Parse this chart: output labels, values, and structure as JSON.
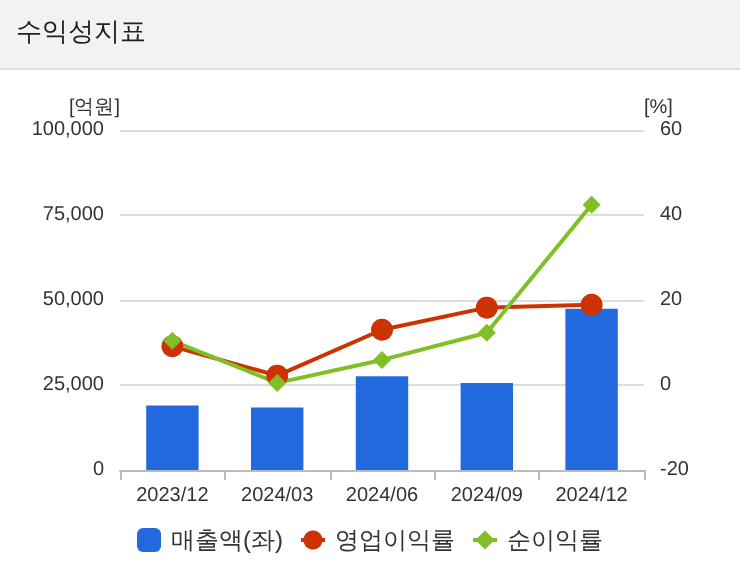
{
  "chart_data": {
    "type": "bar",
    "title": "수익성지표",
    "ylabel": "[억원]",
    "y2label": "[%]",
    "categories": [
      "2023/12",
      "2024/03",
      "2024/06",
      "2024/09",
      "2024/12"
    ],
    "series": [
      {
        "name": "매출액(좌)",
        "color": "#2369de",
        "values": [
          19000,
          18400,
          27600,
          25600,
          47400
        ]
      },
      {
        "name": "영업이익률",
        "type": "line",
        "axis": "y2",
        "color": "#cc3300",
        "marker": "circle",
        "values": [
          9.1,
          2.2,
          13,
          18.2,
          18.9
        ]
      },
      {
        "name": "순이익률",
        "type": "line",
        "axis": "y2",
        "color": "#80bf26",
        "marker": "diamond",
        "values": [
          10.4,
          0.5,
          5.9,
          12.3,
          42.4
        ]
      }
    ],
    "ylim": [
      0,
      100000
    ],
    "yticks": [
      {
        "value": 0,
        "label": "0"
      },
      {
        "value": 25000,
        "label": "25,000"
      },
      {
        "value": 50000,
        "label": "50,000"
      },
      {
        "value": 75000,
        "label": "75,000"
      },
      {
        "value": 100000,
        "label": "100,000"
      }
    ],
    "y2lim": [
      -20,
      60
    ],
    "y2ticks": [
      -20,
      0,
      20,
      40,
      60
    ],
    "grid": "y",
    "legend": "bottom"
  }
}
